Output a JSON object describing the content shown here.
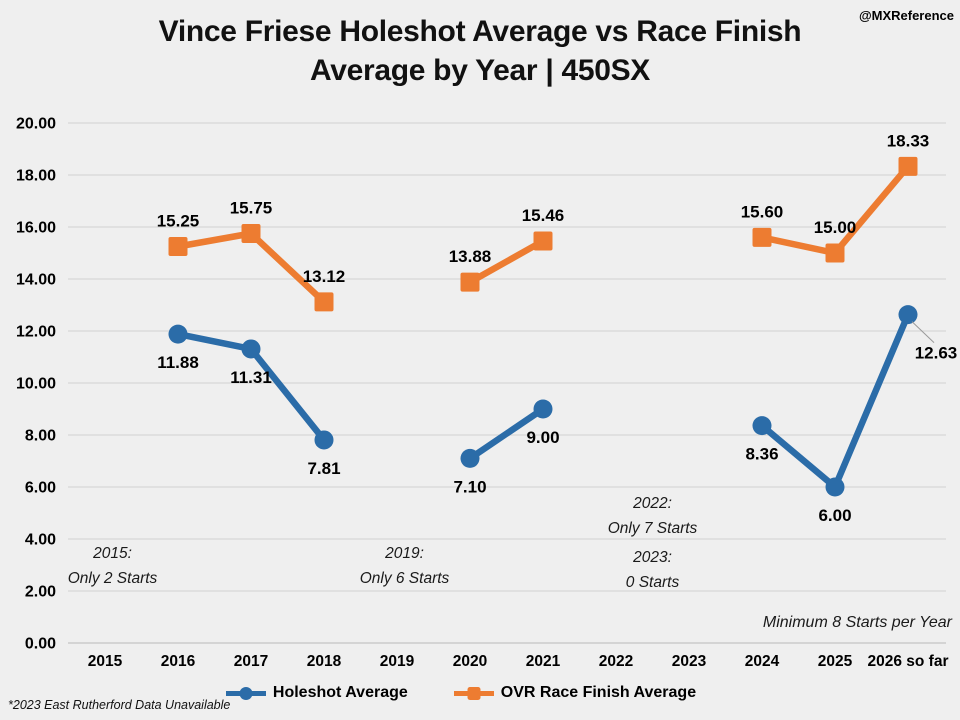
{
  "watermark": "@MXReference",
  "title": "Vince Friese Holeshot Average vs Race Finish Average by Year | 450SX",
  "footnote": "*2023 East Rutherford Data Unavailable",
  "annotations": [
    {
      "id": "2015",
      "text": "2015:\nOnly 2 Starts"
    },
    {
      "id": "2019",
      "text": "2019:\nOnly 6 Starts"
    },
    {
      "id": "2022",
      "text": "2022:\nOnly 7 Starts"
    },
    {
      "id": "2023",
      "text": "2023:\n0 Starts"
    },
    {
      "id": "minimum",
      "text": "Minimum 8 Starts per Year"
    }
  ],
  "legend": [
    {
      "label": "Holeshot Average",
      "color": "#2B6CA8"
    },
    {
      "label": "OVR Race Finish Average",
      "color": "#ED7C31"
    }
  ],
  "colors": {
    "background": "#EFEFEF",
    "gridline": "#D7D7D7",
    "text": "#000000",
    "holeshot_blue": "#2B6CA8",
    "finish_orange": "#ED7C31"
  },
  "chart_data": {
    "type": "line",
    "title": "Vince Friese Holeshot Average vs Race Finish Average by Year | 450SX",
    "categories": [
      "2015",
      "2016",
      "2017",
      "2018",
      "2019",
      "2020",
      "2021",
      "2022",
      "2023",
      "2024",
      "2025",
      "2026 so far"
    ],
    "series": [
      {
        "name": "Holeshot Average",
        "color": "#2B6CA8",
        "marker": "circle",
        "label_side": "below",
        "values": [
          null,
          11.88,
          11.31,
          7.81,
          null,
          7.1,
          9.0,
          null,
          null,
          8.36,
          6.0,
          12.63
        ]
      },
      {
        "name": "OVR Race Finish Average",
        "color": "#ED7C31",
        "marker": "square",
        "label_side": "above",
        "values": [
          null,
          15.25,
          15.75,
          13.12,
          null,
          13.88,
          15.46,
          null,
          null,
          15.6,
          15.0,
          18.33
        ]
      }
    ],
    "label_overrides": [
      {
        "series": 0,
        "category": "2026 so far",
        "dx": 28,
        "dy": 44,
        "leader": true
      }
    ],
    "xlabel": "",
    "ylabel": "",
    "ylim": [
      0,
      20
    ],
    "ytick_step": 2,
    "grid": true,
    "legend_position": "bottom"
  }
}
